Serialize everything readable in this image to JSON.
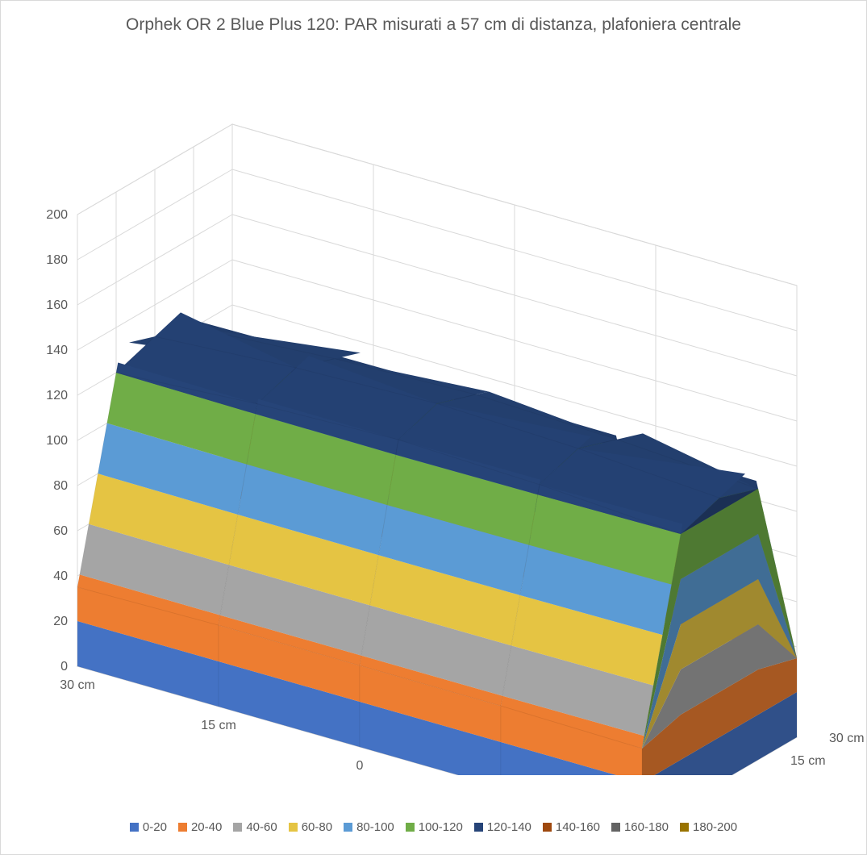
{
  "chart": {
    "type": "surface3d",
    "title": "Orphek OR 2 Blue Plus 120: PAR misurati a 57 cm di distanza, plafoniera centrale",
    "title_fontsize": 21,
    "title_color": "#595959",
    "background_color": "#ffffff",
    "border_color": "#d9d9d9",
    "grid_color": "#d9d9d9",
    "wall_color": "#ffffff",
    "floor_color": "#ffffff",
    "label_color": "#595959",
    "label_fontsize": 16,
    "x_axis": {
      "categories": [
        "30 cm",
        "15 cm",
        "0",
        "15 cm",
        "30 cm"
      ]
    },
    "y_axis": {
      "categories": [
        "30 cm",
        "15 cm",
        "0",
        "15 cm",
        "30 cm"
      ]
    },
    "z_axis": {
      "min": 0,
      "max": 200,
      "step": 20,
      "ticks": [
        0,
        20,
        40,
        60,
        80,
        100,
        120,
        140,
        160,
        180,
        200
      ]
    },
    "data_grid": [
      [
        35,
        36,
        36,
        36,
        35
      ],
      [
        120,
        124,
        126,
        124,
        120
      ],
      [
        126,
        130,
        132,
        130,
        126
      ],
      [
        120,
        124,
        126,
        124,
        120
      ],
      [
        35,
        36,
        36,
        36,
        35
      ]
    ],
    "bands": [
      {
        "label": "0-20",
        "min": 0,
        "max": 20,
        "color": "#4472c4"
      },
      {
        "label": "20-40",
        "min": 20,
        "max": 40,
        "color": "#ed7d31"
      },
      {
        "label": "40-60",
        "min": 40,
        "max": 60,
        "color": "#a5a5a5"
      },
      {
        "label": "60-80",
        "min": 60,
        "max": 80,
        "color": "#e5c443"
      },
      {
        "label": "80-100",
        "min": 80,
        "max": 100,
        "color": "#5b9bd5"
      },
      {
        "label": "100-120",
        "min": 100,
        "max": 120,
        "color": "#70ad47"
      },
      {
        "label": "120-140",
        "min": 120,
        "max": 140,
        "color": "#264478"
      },
      {
        "label": "140-160",
        "min": 140,
        "max": 160,
        "color": "#9e480e"
      },
      {
        "label": "160-180",
        "min": 160,
        "max": 180,
        "color": "#636363"
      },
      {
        "label": "180-200",
        "min": 180,
        "max": 200,
        "color": "#997300"
      }
    ],
    "front_edge_values": [
      35,
      36,
      36,
      36,
      35
    ],
    "front_ridge_values": [
      126,
      130,
      132,
      130,
      126
    ]
  }
}
